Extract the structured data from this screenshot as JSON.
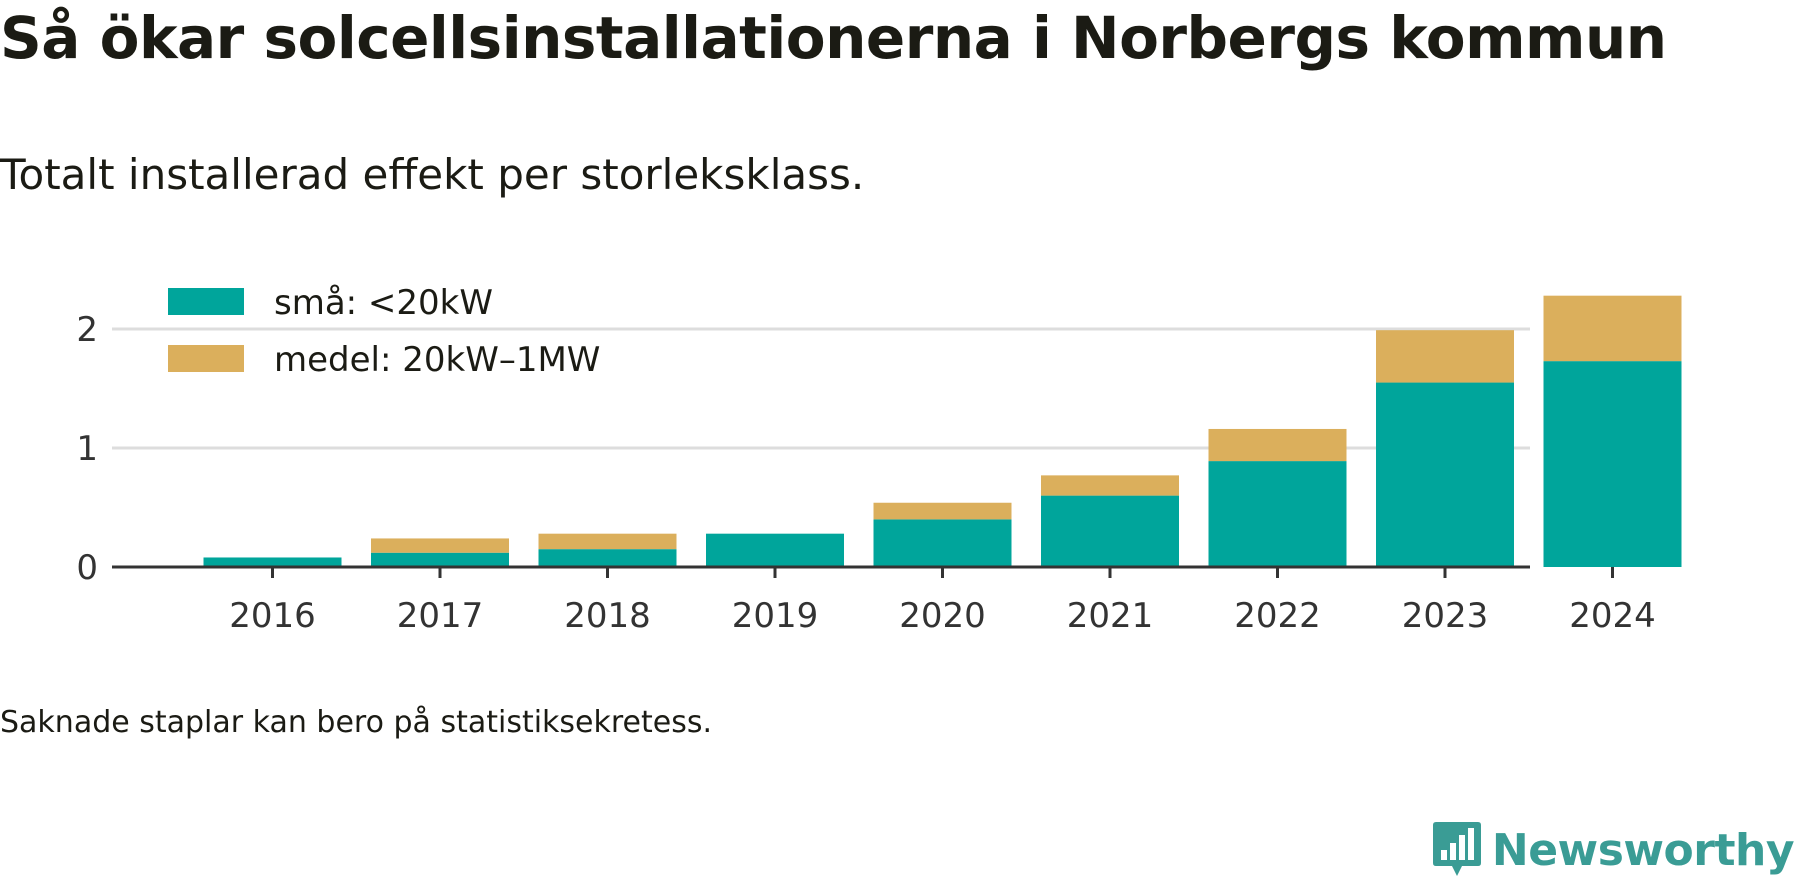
{
  "title": "Så ökar solcellsinstallationerna i Norbergs kommun",
  "subtitle": "Totalt installerad effekt per storleksklass.",
  "footnote": "Saknade staplar kan bero på statistiksekretess.",
  "brand": "Newsworthy",
  "colors": {
    "small": "#00a59b",
    "medium": "#dbaf5c",
    "grid": "#dddddd",
    "axis": "#333333",
    "brand": "#3a9c95"
  },
  "chart_data": {
    "type": "bar",
    "stacked": true,
    "categories": [
      "2016",
      "2017",
      "2018",
      "2019",
      "2020",
      "2021",
      "2022",
      "2023",
      "2024"
    ],
    "series": [
      {
        "name": "små: <20kW",
        "color": "#00a59b",
        "values": [
          0.08,
          0.12,
          0.15,
          0.28,
          0.4,
          0.6,
          0.89,
          1.55,
          1.73
        ]
      },
      {
        "name": "medel: 20kW–1MW",
        "color": "#dbaf5c",
        "values": [
          0,
          0.12,
          0.13,
          0,
          0.14,
          0.17,
          0.27,
          0.44,
          0.55
        ]
      }
    ],
    "ylim": [
      0,
      2.3
    ],
    "yticks": [
      "0",
      "1",
      "2"
    ],
    "ytick_values": [
      0,
      1,
      2
    ],
    "grid": true,
    "legend_position": "top-left",
    "xlabel": "",
    "ylabel": ""
  }
}
